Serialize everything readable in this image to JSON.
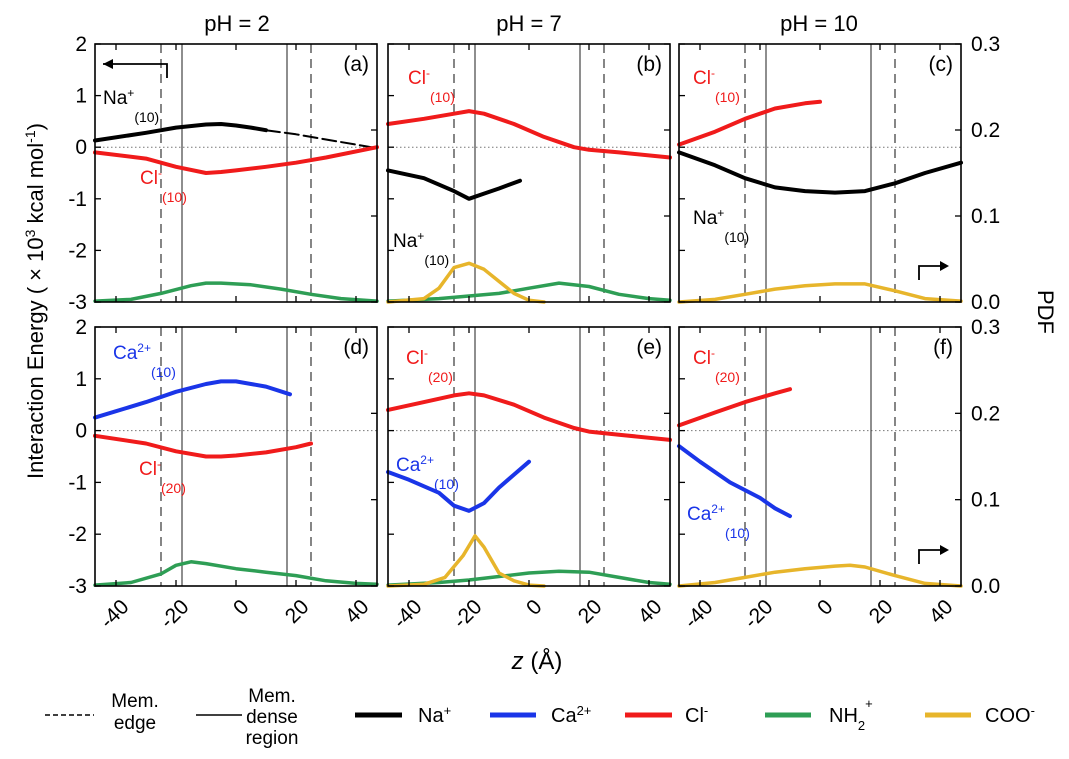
{
  "figure": {
    "ylabel_left": "Interaction Energy ( × 10³ kcal mol⁻¹)",
    "ylabel_left_parts": {
      "pre": "Interaction Energy ( × 10",
      "exp": "3",
      "mid": " kcal mol",
      "exp2": "-1",
      "post": ")"
    },
    "ylabel_right": "PDF",
    "xlabel": "z (Å)",
    "xlabel_parts": {
      "var": "z",
      "unit": " (Å)"
    }
  },
  "columns": [
    {
      "title": "pH = 2"
    },
    {
      "title": "pH = 7"
    },
    {
      "title": "pH = 10"
    }
  ],
  "axes": {
    "x_ticks": [
      -40,
      -20,
      0,
      20,
      40
    ],
    "x_range": [
      -47,
      47
    ],
    "y_left_ticks": [
      2,
      1,
      0,
      -1,
      -2,
      -3
    ],
    "y_left_range": [
      -3,
      2
    ],
    "y_right_ticks": [
      "0.3",
      "0.2",
      "0.1",
      "0.0"
    ],
    "y_right_range": [
      0,
      0.3
    ]
  },
  "colors": {
    "Na": "#000000",
    "Ca": "#1a35e8",
    "Cl": "#f01b1b",
    "NH2": "#2e9e55",
    "COO": "#e7b52b",
    "grid": "#777777"
  },
  "legend": {
    "mem_edge": [
      "Mem.",
      "edge"
    ],
    "mem_dense": [
      "Mem.",
      "dense",
      "region"
    ],
    "na": {
      "base": "Na",
      "sup": "+"
    },
    "ca": {
      "base": "Ca",
      "sup": "2+"
    },
    "cl": {
      "base": "Cl",
      "sup": "-"
    },
    "nh2": {
      "base": "NH",
      "sub": "2",
      "sup": "+"
    },
    "coo": {
      "base": "COO",
      "sup": "-"
    }
  },
  "chart_data": [
    {
      "type": "line",
      "panel": "(a)",
      "column": "pH = 2",
      "row": "top",
      "mem_edge": [
        -25,
        25
      ],
      "mem_dense": [
        -18,
        17
      ],
      "direction_arrow": "left",
      "series": [
        {
          "name": "Na+(10)",
          "label_base": "Na",
          "label_sup": "+",
          "label_sub": "(10)",
          "color_key": "Na",
          "axis": "left",
          "x": [
            -47,
            -30,
            -20,
            -10,
            -5,
            0,
            5,
            10
          ],
          "y": [
            0.13,
            0.28,
            0.38,
            0.44,
            0.45,
            0.42,
            0.38,
            0.33
          ]
        },
        {
          "name": "Na+(10) tail",
          "color_key": "Na",
          "axis": "left",
          "dashed": true,
          "x": [
            10,
            20,
            30,
            40,
            47
          ],
          "y": [
            0.33,
            0.25,
            0.15,
            0.05,
            -0.02
          ]
        },
        {
          "name": "Cl-(10)",
          "label_base": "Cl",
          "label_sup": "-",
          "label_sub": "(10)",
          "color_key": "Cl",
          "axis": "left",
          "x": [
            -47,
            -30,
            -20,
            -10,
            -5,
            0,
            10,
            20,
            30,
            47
          ],
          "y": [
            -0.1,
            -0.22,
            -0.38,
            -0.5,
            -0.48,
            -0.45,
            -0.38,
            -0.3,
            -0.2,
            0.0
          ]
        },
        {
          "name": "NH2+",
          "color_key": "NH2",
          "axis": "right",
          "x": [
            -47,
            -35,
            -25,
            -15,
            -10,
            -5,
            5,
            15,
            25,
            35,
            47
          ],
          "y": [
            0.001,
            0.003,
            0.01,
            0.019,
            0.022,
            0.022,
            0.02,
            0.015,
            0.009,
            0.004,
            0.001
          ]
        }
      ]
    },
    {
      "type": "line",
      "panel": "(b)",
      "column": "pH = 7",
      "row": "top",
      "mem_edge": [
        -25,
        25
      ],
      "mem_dense": [
        -18,
        17
      ],
      "series": [
        {
          "name": "Cl-(10)",
          "label_base": "Cl",
          "label_sup": "-",
          "label_sub": "(10)",
          "color_key": "Cl",
          "axis": "left",
          "x": [
            -47,
            -35,
            -25,
            -20,
            -15,
            -5,
            5,
            15,
            20,
            30,
            47
          ],
          "y": [
            0.45,
            0.55,
            0.65,
            0.7,
            0.65,
            0.45,
            0.2,
            0.0,
            -0.05,
            -0.1,
            -0.2
          ]
        },
        {
          "name": "Na+(10)",
          "label_base": "Na",
          "label_sup": "+",
          "label_sub": "(10)",
          "color_key": "Na",
          "axis": "left",
          "x": [
            -47,
            -35,
            -25,
            -20,
            -15,
            -10,
            -3
          ],
          "y": [
            -0.45,
            -0.6,
            -0.85,
            -1.0,
            -0.9,
            -0.8,
            -0.65
          ]
        },
        {
          "name": "NH2+",
          "color_key": "NH2",
          "axis": "right",
          "x": [
            -47,
            -30,
            -20,
            -10,
            0,
            10,
            20,
            30,
            40,
            47
          ],
          "y": [
            0.001,
            0.004,
            0.007,
            0.01,
            0.016,
            0.022,
            0.018,
            0.009,
            0.004,
            0.002
          ]
        },
        {
          "name": "COO-",
          "color_key": "COO",
          "axis": "right",
          "x": [
            -47,
            -35,
            -30,
            -25,
            -20,
            -15,
            -10,
            -5,
            0,
            5
          ],
          "y": [
            0.0,
            0.004,
            0.016,
            0.04,
            0.045,
            0.038,
            0.024,
            0.01,
            0.002,
            0.0
          ]
        }
      ]
    },
    {
      "type": "line",
      "panel": "(c)",
      "column": "pH = 10",
      "row": "top",
      "mem_edge": [
        -25,
        25
      ],
      "mem_dense": [
        -18,
        17
      ],
      "direction_arrow": "right",
      "series": [
        {
          "name": "Cl-(10)",
          "label_base": "Cl",
          "label_sup": "-",
          "label_sub": "(10)",
          "color_key": "Cl",
          "axis": "left",
          "x": [
            -47,
            -35,
            -25,
            -15,
            -5,
            0
          ],
          "y": [
            0.05,
            0.3,
            0.55,
            0.75,
            0.85,
            0.88
          ]
        },
        {
          "name": "Na+(10)",
          "label_base": "Na",
          "label_sup": "+",
          "label_sub": "(10)",
          "color_key": "Na",
          "axis": "left",
          "x": [
            -47,
            -35,
            -25,
            -15,
            -5,
            5,
            15,
            25,
            35,
            47
          ],
          "y": [
            -0.1,
            -0.35,
            -0.6,
            -0.78,
            -0.85,
            -0.88,
            -0.85,
            -0.7,
            -0.5,
            -0.3
          ]
        },
        {
          "name": "COO-",
          "color_key": "COO",
          "axis": "right",
          "x": [
            -47,
            -35,
            -25,
            -15,
            -5,
            5,
            15,
            25,
            35,
            47
          ],
          "y": [
            0.0,
            0.003,
            0.009,
            0.015,
            0.019,
            0.021,
            0.021,
            0.013,
            0.004,
            0.001
          ]
        }
      ]
    },
    {
      "type": "line",
      "panel": "(d)",
      "column": "pH = 2",
      "row": "bottom",
      "mem_edge": [
        -25,
        25
      ],
      "mem_dense": [
        -18,
        17
      ],
      "series": [
        {
          "name": "Ca2+(10)",
          "label_base": "Ca",
          "label_sup": "2+",
          "label_sub": "(10)",
          "color_key": "Ca",
          "axis": "left",
          "x": [
            -47,
            -30,
            -20,
            -10,
            -5,
            0,
            10,
            18
          ],
          "y": [
            0.25,
            0.55,
            0.75,
            0.9,
            0.95,
            0.95,
            0.85,
            0.7
          ]
        },
        {
          "name": "Cl-(20)",
          "label_base": "Cl",
          "label_sup": "-",
          "label_sub": "(20)",
          "color_key": "Cl",
          "axis": "left",
          "x": [
            -47,
            -30,
            -20,
            -10,
            -5,
            0,
            10,
            20,
            25
          ],
          "y": [
            -0.1,
            -0.25,
            -0.4,
            -0.5,
            -0.5,
            -0.48,
            -0.42,
            -0.32,
            -0.25
          ]
        },
        {
          "name": "NH2+",
          "color_key": "NH2",
          "axis": "right",
          "x": [
            -47,
            -35,
            -25,
            -20,
            -15,
            -10,
            0,
            10,
            20,
            30,
            40,
            47
          ],
          "y": [
            0.001,
            0.004,
            0.014,
            0.024,
            0.028,
            0.026,
            0.02,
            0.016,
            0.012,
            0.006,
            0.003,
            0.002
          ]
        }
      ]
    },
    {
      "type": "line",
      "panel": "(e)",
      "column": "pH = 7",
      "row": "bottom",
      "mem_edge": [
        -25,
        25
      ],
      "mem_dense": [
        -18,
        17
      ],
      "series": [
        {
          "name": "Cl-(20)",
          "label_base": "Cl",
          "label_sup": "-",
          "label_sub": "(20)",
          "color_key": "Cl",
          "axis": "left",
          "x": [
            -47,
            -35,
            -25,
            -20,
            -15,
            -5,
            5,
            15,
            20,
            30,
            47
          ],
          "y": [
            0.4,
            0.55,
            0.68,
            0.72,
            0.68,
            0.5,
            0.25,
            0.05,
            -0.02,
            -0.08,
            -0.18
          ]
        },
        {
          "name": "Ca2+(10)",
          "label_base": "Ca",
          "label_sup": "2+",
          "label_sub": "(10)",
          "color_key": "Ca",
          "axis": "left",
          "x": [
            -47,
            -40,
            -30,
            -25,
            -20,
            -15,
            -10,
            -5,
            0
          ],
          "y": [
            -0.8,
            -0.95,
            -1.2,
            -1.45,
            -1.55,
            -1.4,
            -1.1,
            -0.85,
            -0.6
          ]
        },
        {
          "name": "NH2+",
          "color_key": "NH2",
          "axis": "right",
          "x": [
            -47,
            -30,
            -20,
            -10,
            0,
            10,
            20,
            30,
            40,
            47
          ],
          "y": [
            0.001,
            0.004,
            0.007,
            0.011,
            0.015,
            0.017,
            0.016,
            0.01,
            0.004,
            0.002
          ]
        },
        {
          "name": "COO-",
          "color_key": "COO",
          "axis": "right",
          "x": [
            -47,
            -35,
            -28,
            -22,
            -18,
            -15,
            -10,
            -5,
            0,
            5
          ],
          "y": [
            0.0,
            0.002,
            0.01,
            0.035,
            0.058,
            0.045,
            0.015,
            0.006,
            0.001,
            0.0
          ]
        }
      ]
    },
    {
      "type": "line",
      "panel": "(f)",
      "column": "pH = 10",
      "row": "bottom",
      "mem_edge": [
        -25,
        25
      ],
      "mem_dense": [
        -18,
        17
      ],
      "direction_arrow": "right",
      "series": [
        {
          "name": "Cl-(20)",
          "label_base": "Cl",
          "label_sup": "-",
          "label_sub": "(20)",
          "color_key": "Cl",
          "axis": "left",
          "x": [
            -47,
            -35,
            -25,
            -15,
            -10
          ],
          "y": [
            0.1,
            0.35,
            0.55,
            0.72,
            0.8
          ]
        },
        {
          "name": "Ca2+(10)",
          "label_base": "Ca",
          "label_sup": "2+",
          "label_sub": "(10)",
          "color_key": "Ca",
          "axis": "left",
          "x": [
            -47,
            -40,
            -30,
            -20,
            -15,
            -10
          ],
          "y": [
            -0.3,
            -0.6,
            -1.0,
            -1.3,
            -1.5,
            -1.65
          ]
        },
        {
          "name": "COO-",
          "color_key": "COO",
          "axis": "right",
          "x": [
            -47,
            -35,
            -25,
            -15,
            -5,
            5,
            10,
            15,
            25,
            35,
            47
          ],
          "y": [
            0.0,
            0.004,
            0.01,
            0.016,
            0.02,
            0.023,
            0.024,
            0.022,
            0.012,
            0.003,
            0.0
          ]
        }
      ]
    }
  ]
}
